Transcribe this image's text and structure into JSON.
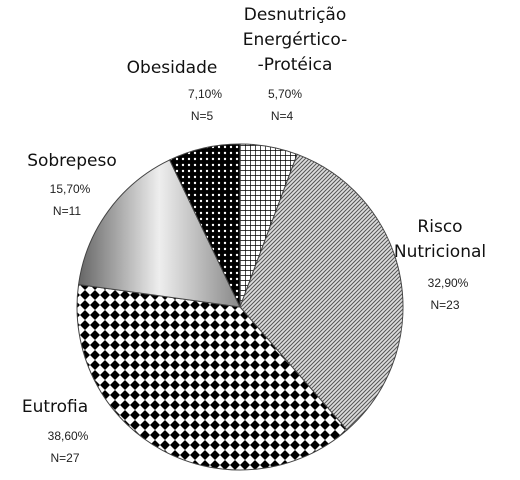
{
  "chart_data": {
    "type": "pie",
    "categories": [
      "Desnutrição\nEnergértico-\n-Protéica",
      "Risco\nNutricional",
      "Eutrofia",
      "Sobrepeso",
      "Obesidade"
    ],
    "values": [
      5.7,
      32.9,
      38.6,
      15.7,
      7.1
    ],
    "value_labels": [
      "5,70%",
      "32,90%",
      "38,60%",
      "15,70%",
      "7,10%"
    ],
    "n_labels": [
      "N=4",
      "N=23",
      "N=27",
      "N=11",
      "N=5"
    ]
  }
}
